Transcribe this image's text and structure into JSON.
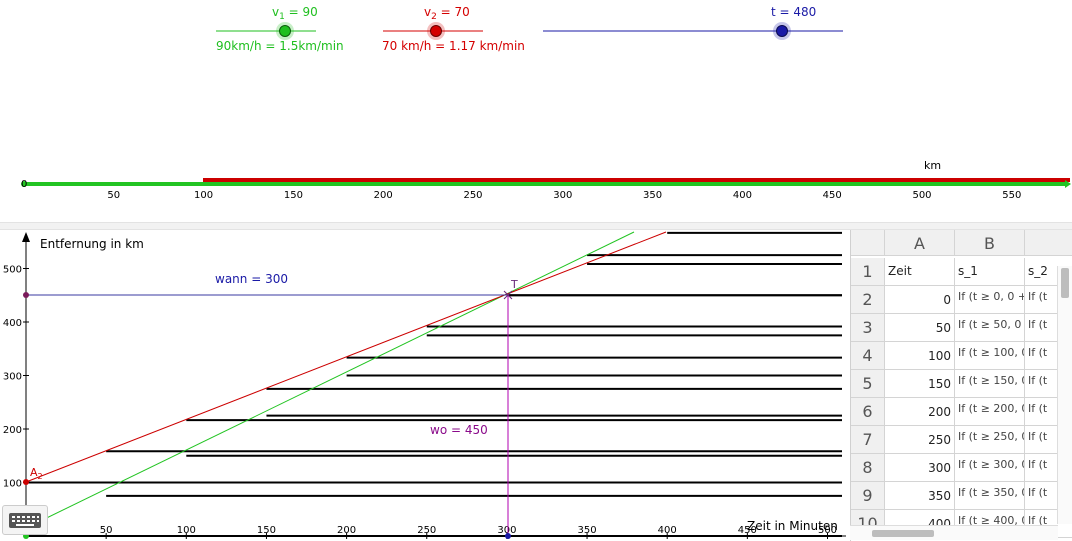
{
  "sliders": {
    "v1": {
      "label_main": "v",
      "label_sub": "1",
      "label_rest": " = 90",
      "caption": "90km/h = 1.5km/min",
      "color": "#1fbf1f"
    },
    "v2": {
      "label_main": "v",
      "label_sub": "2",
      "label_rest": " = 70",
      "caption": "70 km/h = 1.17 km/min",
      "color": "#d40000"
    },
    "t": {
      "label": "t = 480",
      "color": "#1a1aa6"
    }
  },
  "track": {
    "unit": "km",
    "ticks": [
      "0",
      "50",
      "100",
      "150",
      "200",
      "250",
      "300",
      "350",
      "400",
      "450",
      "500",
      "550"
    ],
    "colors": {
      "green": "#22c422",
      "red": "#cc0000"
    }
  },
  "graph": {
    "ylabel": "Entfernung in km",
    "xlabel": "Zeit in Minuten",
    "xticks": [
      "50",
      "100",
      "150",
      "200",
      "250",
      "300",
      "350",
      "400",
      "450",
      "500"
    ],
    "yticks": [
      "100",
      "200",
      "300",
      "400",
      "500"
    ],
    "labels": {
      "wann": "wann = 300",
      "wo": "wo = 450",
      "point_t": "T",
      "point_a": "A",
      "point_a_sub": "2"
    }
  },
  "sheet": {
    "columns": [
      "A",
      "B"
    ],
    "rows": [
      {
        "n": "1",
        "a": "Zeit",
        "b": "s_1",
        "c": "s_2"
      },
      {
        "n": "2",
        "a": "0",
        "b": "If (t ≥ 0, 0 +",
        "c": "If (t"
      },
      {
        "n": "3",
        "a": "50",
        "b": "If (t ≥ 50, 0",
        "c": "If (t"
      },
      {
        "n": "4",
        "a": "100",
        "b": "If (t ≥ 100, 0",
        "c": "If (t"
      },
      {
        "n": "5",
        "a": "150",
        "b": "If (t ≥ 150, 0",
        "c": "If (t"
      },
      {
        "n": "6",
        "a": "200",
        "b": "If (t ≥ 200, 0",
        "c": "If (t"
      },
      {
        "n": "7",
        "a": "250",
        "b": "If (t ≥ 250, 0",
        "c": "If (t"
      },
      {
        "n": "8",
        "a": "300",
        "b": "If (t ≥ 300, 0",
        "c": "If (t"
      },
      {
        "n": "9",
        "a": "350",
        "b": "If (t ≥ 350, 0",
        "c": "If (t"
      },
      {
        "n": "10",
        "a": "400",
        "b": "If (t ≥ 400, 0",
        "c": "If (t"
      }
    ]
  }
}
